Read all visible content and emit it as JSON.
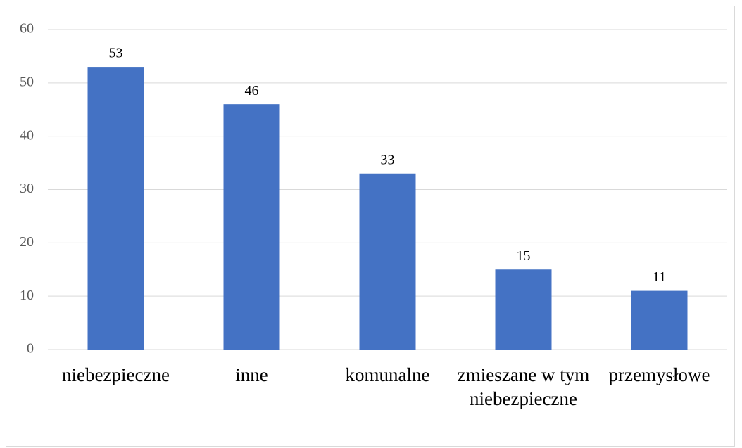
{
  "chart_data": {
    "type": "bar",
    "categories": [
      "niebezpieczne",
      "inne",
      "komunalne",
      "zmieszane w tym niebezpieczne",
      "przemysłowe"
    ],
    "values": [
      53,
      46,
      33,
      15,
      11
    ],
    "color": "#4472c4",
    "ylim": [
      0,
      60
    ],
    "yticks": [
      0,
      10,
      20,
      30,
      40,
      50,
      60
    ],
    "grid": true
  }
}
